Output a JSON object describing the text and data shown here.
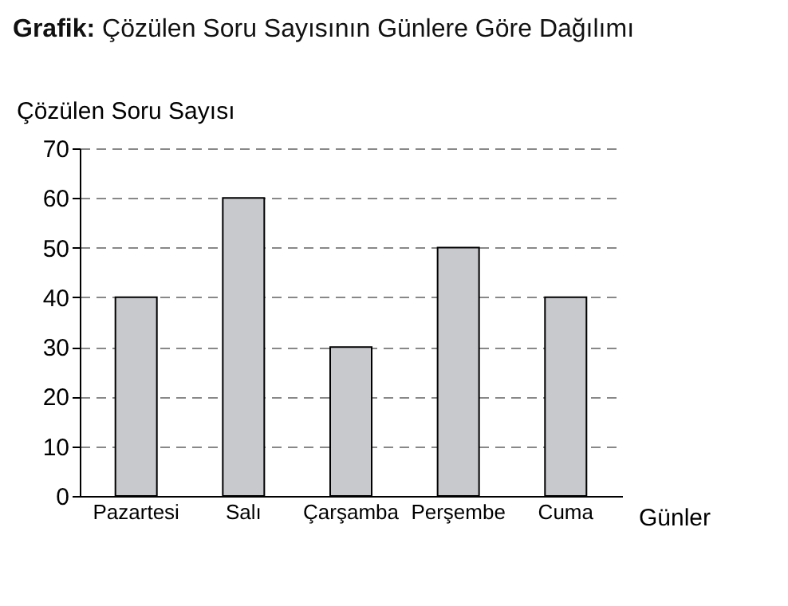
{
  "chart_data": {
    "type": "bar",
    "title": "Grafik: Çözülen Soru Sayısının Günlere Göre Dağılımı",
    "xlabel": "Günler",
    "ylabel": "Çözülen Soru Sayısı",
    "categories": [
      "Pazartesi",
      "Salı",
      "Çarşamba",
      "Perşembe",
      "Cuma"
    ],
    "values": [
      40,
      60,
      30,
      50,
      40
    ],
    "color": "#c8c9cc",
    "ylim": [
      0,
      70
    ],
    "yticks": [
      0,
      10,
      20,
      30,
      40,
      50,
      60,
      70
    ],
    "grid": "y"
  }
}
